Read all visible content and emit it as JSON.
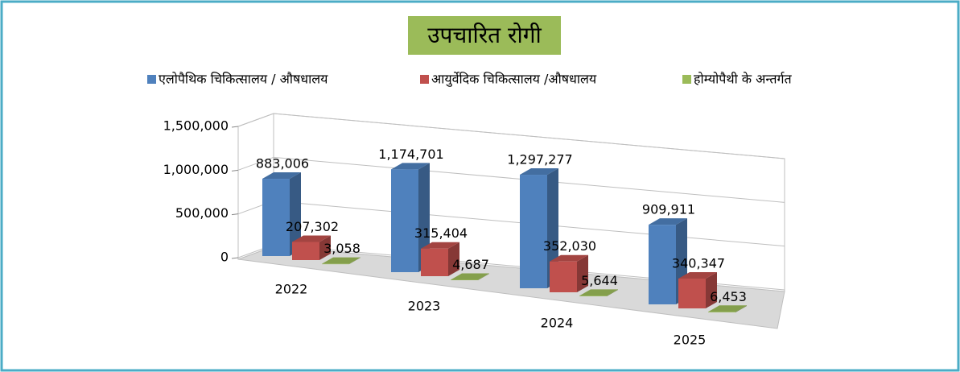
{
  "chart_data": {
    "type": "bar3d",
    "title": "उपचारित रोगी",
    "categories": [
      "2022",
      "2023",
      "2024",
      "2025"
    ],
    "series": [
      {
        "name": "एलोपैथिक चिकित्सालय / औषधालय",
        "color": "#4f81bd",
        "values": [
          883006,
          1174701,
          1297277,
          909911
        ],
        "value_labels": [
          "883,006",
          "1,174,701",
          "1,297,277",
          "909,911"
        ]
      },
      {
        "name": "आयुर्वेदिक चिकित्सालय /औषधालय",
        "color": "#c0504d",
        "values": [
          207302,
          315404,
          352030,
          340347
        ],
        "value_labels": [
          "207,302",
          "315,404",
          "352,030",
          "340,347"
        ]
      },
      {
        "name": "होम्योपैथी के अन्तर्गत",
        "color": "#9bbb59",
        "values": [
          3058,
          4687,
          5644,
          6453
        ],
        "value_labels": [
          "3,058",
          "4,687",
          "5,644",
          "6,453"
        ]
      }
    ],
    "ylim": [
      0,
      1500000
    ],
    "yticks": [
      0,
      {
        "value": 500000,
        "label": "500,000"
      },
      {
        "value": 1000000,
        "label": "1,000,000"
      },
      {
        "value": 1500000,
        "label": "1,500,000"
      }
    ],
    "grid": true,
    "legend": "top"
  }
}
